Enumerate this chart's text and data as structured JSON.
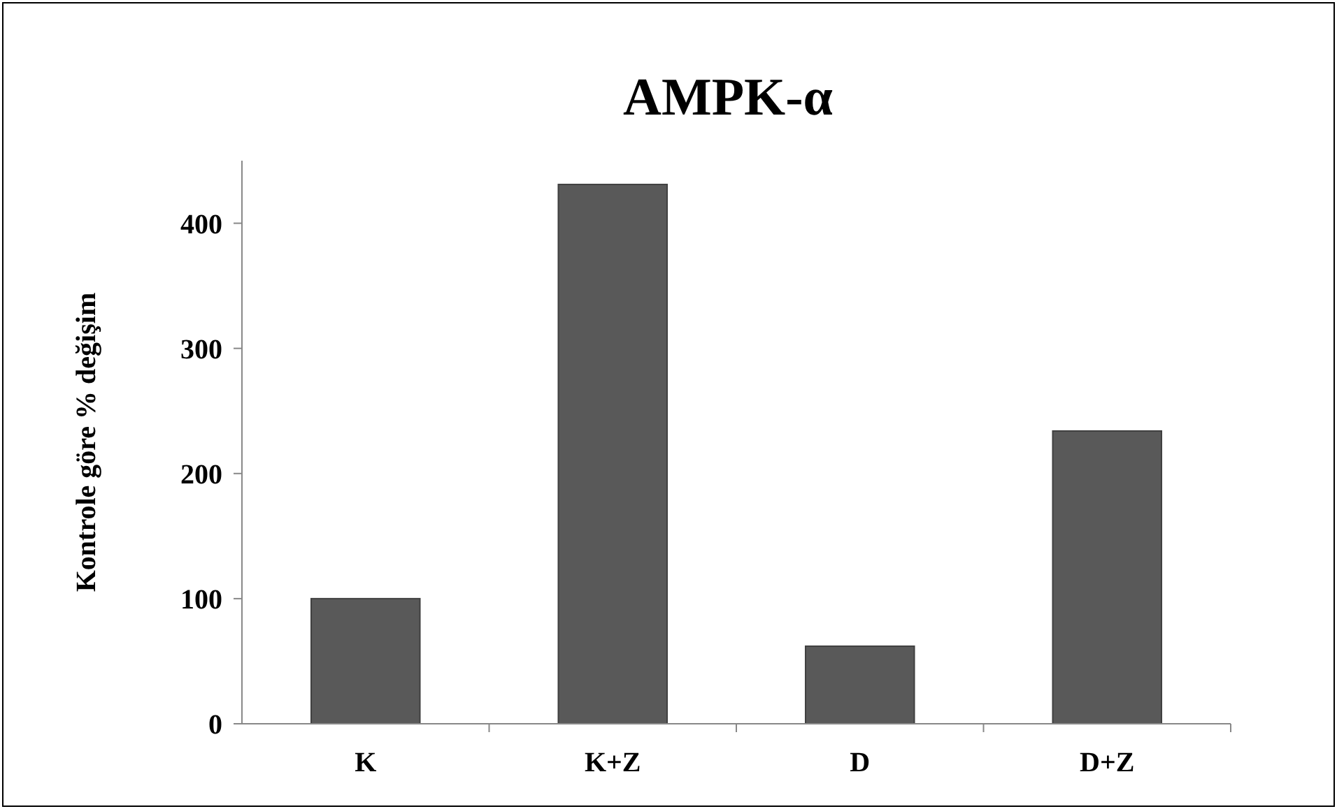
{
  "chart_data": {
    "type": "bar",
    "title": "AMPK-α",
    "ylabel": "Kontrole göre % değişim",
    "categories": [
      "K",
      "K+Z",
      "D",
      "D+Z"
    ],
    "values": [
      100,
      431,
      62,
      234
    ],
    "color": "#595959",
    "ylim": [
      0,
      450
    ],
    "yticks": [
      0,
      100,
      200,
      300,
      400
    ],
    "grid": false
  }
}
